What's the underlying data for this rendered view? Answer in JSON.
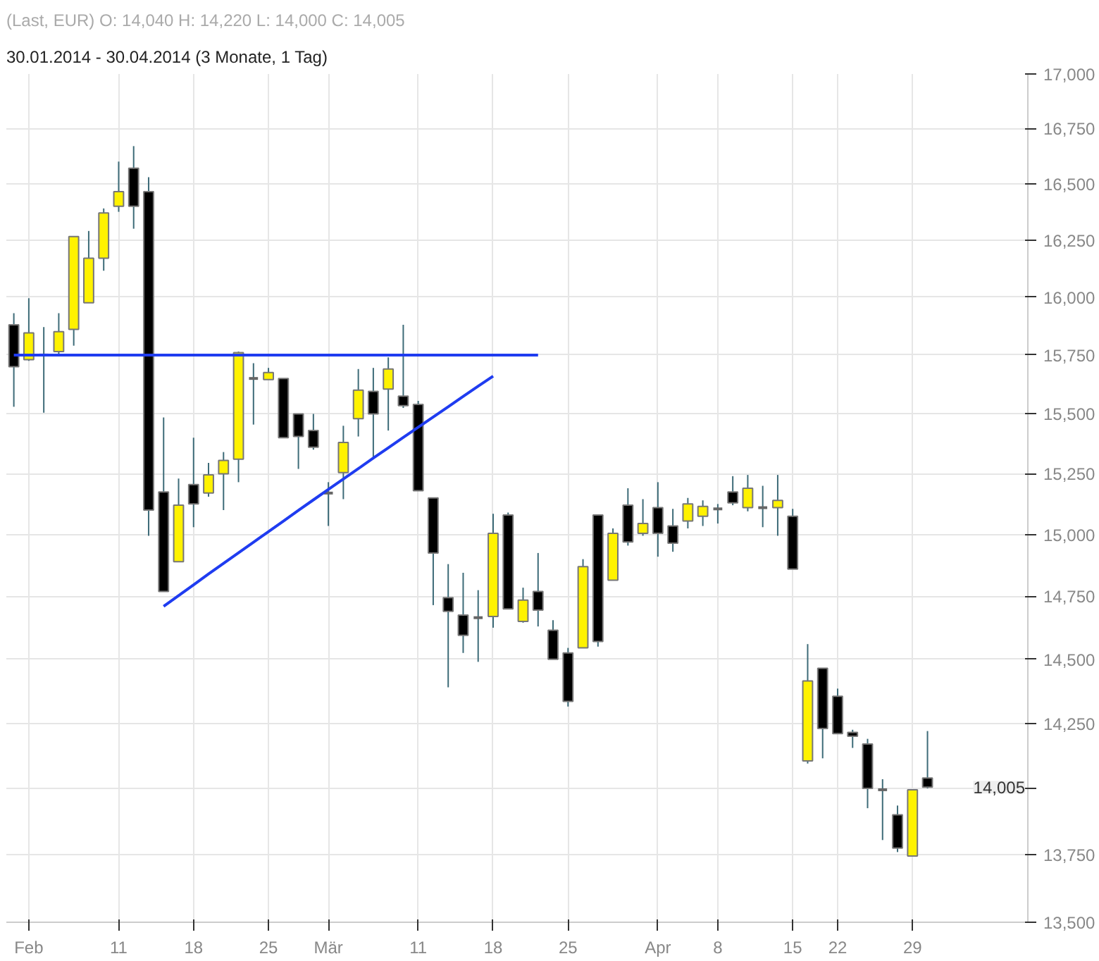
{
  "chart_data": {
    "type": "candlestick",
    "title": "(Last, EUR)  O: 14,040  H: 14,220  L: 14,000  C: 14,005",
    "subtitle": "30.01.2014 - 30.04.2014 (3 Monate, 1 Tag)",
    "categories": [
      null,
      "Feb",
      null,
      null,
      null,
      null,
      null,
      "11",
      null,
      null,
      null,
      null,
      "18",
      null,
      null,
      null,
      null,
      "25",
      null,
      null,
      null,
      "Mär",
      null,
      null,
      null,
      null,
      null,
      "11",
      null,
      null,
      null,
      null,
      "18",
      null,
      null,
      null,
      null,
      "25",
      null,
      null,
      null,
      null,
      null,
      "Apr",
      null,
      null,
      null,
      "8",
      null,
      null,
      null,
      null,
      "15",
      null,
      null,
      "22",
      null,
      null,
      null,
      null,
      "29",
      null
    ],
    "ohlc": [
      [
        15880,
        15930,
        15530,
        15700
      ],
      [
        15730,
        15995,
        15725,
        15845
      ],
      [
        15750,
        15870,
        15505,
        15750
      ],
      [
        15765,
        15930,
        15755,
        15850
      ],
      [
        15860,
        16265,
        15790,
        16265
      ],
      [
        15975,
        16290,
        15975,
        16170
      ],
      [
        16170,
        16390,
        16115,
        16370
      ],
      [
        16400,
        16600,
        16375,
        16465
      ],
      [
        16570,
        16670,
        16300,
        16400
      ],
      [
        16465,
        16530,
        14995,
        15100
      ],
      [
        15175,
        15485,
        14770,
        14770
      ],
      [
        14890,
        15230,
        14890,
        15120
      ],
      [
        15205,
        15400,
        15030,
        15125
      ],
      [
        15170,
        15295,
        15155,
        15245
      ],
      [
        15250,
        15340,
        15100,
        15305
      ],
      [
        15310,
        15765,
        15215,
        15760
      ],
      [
        15650,
        15715,
        15455,
        15650
      ],
      [
        15645,
        15695,
        15645,
        15675
      ],
      [
        15650,
        15650,
        15400,
        15400
      ],
      [
        15500,
        15500,
        15270,
        15405
      ],
      [
        15430,
        15500,
        15350,
        15360
      ],
      [
        15170,
        15215,
        15035,
        15170
      ],
      [
        15255,
        15450,
        15145,
        15380
      ],
      [
        15480,
        15690,
        15405,
        15600
      ],
      [
        15595,
        15695,
        15320,
        15500
      ],
      [
        15605,
        15740,
        15430,
        15690
      ],
      [
        15575,
        15880,
        15525,
        15535
      ],
      [
        15540,
        15555,
        15180,
        15180
      ],
      [
        15150,
        15150,
        14715,
        14925
      ],
      [
        14745,
        14880,
        14390,
        14690
      ],
      [
        14675,
        14845,
        14525,
        14595
      ],
      [
        14665,
        14775,
        14490,
        14665
      ],
      [
        14670,
        15085,
        14625,
        15005
      ],
      [
        15080,
        15090,
        14700,
        14700
      ],
      [
        14650,
        14785,
        14645,
        14735
      ],
      [
        14770,
        14925,
        14630,
        14695
      ],
      [
        14615,
        14655,
        14500,
        14500
      ],
      [
        14525,
        14545,
        14315,
        14335
      ],
      [
        14545,
        14900,
        14545,
        14870
      ],
      [
        15080,
        15080,
        14550,
        14570
      ],
      [
        14815,
        15025,
        14815,
        15005
      ],
      [
        15120,
        15190,
        14955,
        14970
      ],
      [
        15005,
        15145,
        14995,
        15045
      ],
      [
        15110,
        15215,
        14910,
        15005
      ],
      [
        15035,
        15105,
        14930,
        14965
      ],
      [
        15055,
        15150,
        15025,
        15125
      ],
      [
        15075,
        15140,
        15035,
        15115
      ],
      [
        15105,
        15125,
        15045,
        15105
      ],
      [
        15175,
        15240,
        15120,
        15130
      ],
      [
        15110,
        15245,
        15095,
        15190
      ],
      [
        15110,
        15200,
        15030,
        15110
      ],
      [
        15110,
        15245,
        14995,
        15140
      ],
      [
        15075,
        15105,
        14860,
        14860
      ],
      [
        14105,
        14560,
        14095,
        14415
      ],
      [
        14465,
        14465,
        14115,
        14230
      ],
      [
        14355,
        14385,
        14210,
        14210
      ],
      [
        14215,
        14225,
        14155,
        14200
      ],
      [
        14170,
        14190,
        13925,
        14000
      ],
      [
        13995,
        14035,
        13805,
        13995
      ],
      [
        13900,
        13935,
        13760,
        13775
      ],
      [
        13745,
        13995,
        13745,
        13995
      ],
      [
        14040,
        14220,
        14000,
        14005
      ]
    ],
    "ylim": [
      13500,
      17000
    ],
    "yticks": [
      {
        "value": 13500,
        "label": "13,500"
      },
      {
        "value": 13750,
        "label": "13,750"
      },
      {
        "value": 14000,
        "label": null
      },
      {
        "value": 14250,
        "label": "14,250"
      },
      {
        "value": 14500,
        "label": "14,500"
      },
      {
        "value": 14750,
        "label": "14,750"
      },
      {
        "value": 15000,
        "label": "15,000"
      },
      {
        "value": 15250,
        "label": "15,250"
      },
      {
        "value": 15500,
        "label": "15,500"
      },
      {
        "value": 15750,
        "label": "15,750"
      },
      {
        "value": 16000,
        "label": "16,000"
      },
      {
        "value": 16250,
        "label": "16,250"
      },
      {
        "value": 16500,
        "label": "16,500"
      },
      {
        "value": 16750,
        "label": "16,750"
      },
      {
        "value": 17000,
        "label": "17,000"
      }
    ],
    "log": true,
    "grid": true,
    "series": [
      {
        "type": "line",
        "color": "#1f3cf0",
        "values": [
          15750,
          15750,
          15750,
          15750,
          15750,
          15750,
          15750,
          15750,
          15750,
          15750,
          15750,
          15750,
          15750,
          15750,
          15750,
          15750,
          15750,
          15750,
          15750,
          15750,
          15750,
          15750,
          15750,
          15750,
          15750,
          15750,
          15750,
          15750,
          15750,
          15750,
          15750,
          15750,
          15750,
          15750,
          15750,
          15750,
          null,
          null,
          null,
          null,
          null,
          null,
          null,
          null,
          null,
          null,
          null,
          null,
          null,
          null,
          null,
          null,
          null,
          null,
          null,
          null,
          null,
          null,
          null,
          null,
          null,
          null
        ]
      },
      {
        "type": "line",
        "color": "#1f3cf0",
        "values": [
          null,
          null,
          null,
          null,
          null,
          null,
          null,
          null,
          null,
          null,
          14710,
          14753,
          14796,
          14840,
          14883,
          14926,
          14969,
          15012,
          15055,
          15099,
          15142,
          15185,
          15228,
          15271,
          15315,
          15358,
          15401,
          15444,
          15487,
          15530,
          15574,
          15617,
          15660,
          null,
          null,
          null,
          null,
          null,
          null,
          null,
          null,
          null,
          null,
          null,
          null,
          null,
          null,
          null,
          null,
          null,
          null,
          null,
          null,
          null,
          null,
          null,
          null,
          null,
          null,
          null,
          null,
          null
        ]
      }
    ],
    "annotations": [
      "14,005"
    ]
  }
}
